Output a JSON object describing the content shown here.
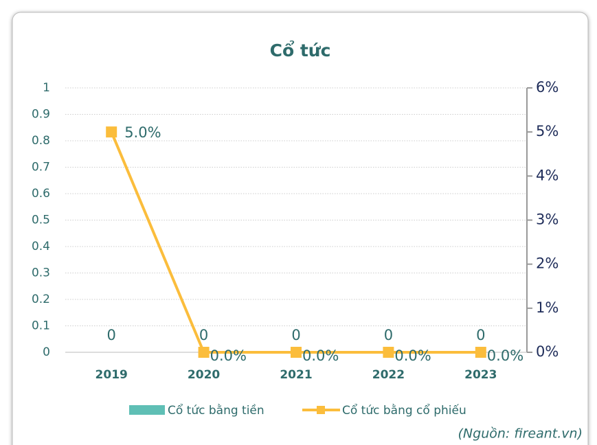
{
  "chart_data": {
    "type": "bar_line",
    "title": "Cổ tức",
    "categories": [
      "2019",
      "2020",
      "2021",
      "2022",
      "2023"
    ],
    "series": [
      {
        "name": "Cổ tức bằng tiền",
        "type": "bar",
        "color": "#5fbfb5",
        "values": [
          0,
          0,
          0,
          0,
          0
        ]
      },
      {
        "name": "Cổ tức bằng cổ phiếu",
        "type": "line",
        "axis": "y2",
        "color": "#fbbd3c",
        "values": [
          5,
          0,
          0,
          0,
          0
        ],
        "value_labels": [
          "5.0%",
          "0.0%",
          "0.0%",
          "0.0%",
          "0.0%"
        ]
      }
    ],
    "ylim": [
      0,
      1
    ],
    "yticks": [
      0,
      0.1,
      0.2,
      0.3,
      0.4,
      0.5,
      0.6,
      0.7,
      0.8,
      0.9,
      1
    ],
    "y2lim": [
      0,
      6
    ],
    "y2ticks": [
      {
        "value": 0,
        "label": "0%"
      },
      {
        "value": 1,
        "label": "1%"
      },
      {
        "value": 2,
        "label": "2%"
      },
      {
        "value": 3,
        "label": "3%"
      },
      {
        "value": 4,
        "label": "4%"
      },
      {
        "value": 5,
        "label": "5%"
      },
      {
        "value": 6,
        "label": "6%"
      }
    ],
    "grid": true,
    "legend": "bottom",
    "source": "(Nguồn: fireant.vn)"
  }
}
